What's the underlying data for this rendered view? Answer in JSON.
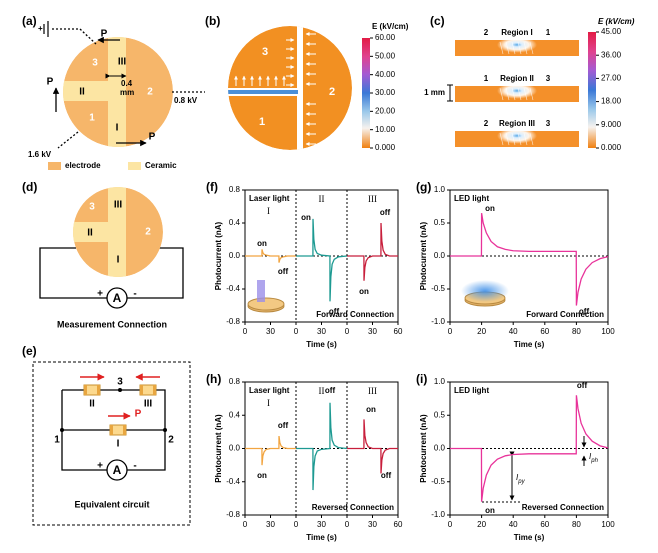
{
  "figure": {
    "a": {
      "label": "(a)",
      "p_labels": [
        "P",
        "P",
        "P"
      ],
      "regions": [
        "3",
        "III",
        "II",
        "1",
        "2",
        "I"
      ],
      "gap": [
        "0.4",
        "mm"
      ],
      "voltages": [
        "0.8 kV",
        "1.6 kV"
      ],
      "legend": [
        "electrode",
        "Ceramic"
      ]
    },
    "b": {
      "label": "(b)",
      "regions": [
        "3",
        "1",
        "2"
      ],
      "colorbar": {
        "title": "E (kV/cm)",
        "lim": [
          0,
          60
        ],
        "ticks": [
          {
            "value": 60,
            "label": "60.00"
          },
          {
            "value": 50,
            "label": "50.00"
          },
          {
            "value": 40,
            "label": "40.00"
          },
          {
            "value": 30,
            "label": "30.00"
          },
          {
            "value": 20,
            "label": "20.00"
          },
          {
            "value": 10,
            "label": "10.00"
          },
          {
            "value": 0,
            "label": "0.000"
          }
        ]
      }
    },
    "c": {
      "label": "(c)",
      "strips": [
        {
          "left": "2",
          "name": "Region I",
          "right": "1"
        },
        {
          "left": "1",
          "name": "Region II",
          "right": "3"
        },
        {
          "left": "2",
          "name": "Region III",
          "right": "3"
        }
      ],
      "scale": "1 mm",
      "colorbar": {
        "title": "E (kV/cm)",
        "lim": [
          0,
          45
        ],
        "ticks": [
          {
            "value": 45,
            "label": "45.00"
          },
          {
            "value": 36,
            "label": "36.00"
          },
          {
            "value": 27,
            "label": "27.00"
          },
          {
            "value": 18,
            "label": "18.00"
          },
          {
            "value": 9,
            "label": "9.000"
          },
          {
            "value": 0,
            "label": "0.000"
          }
        ]
      }
    },
    "d": {
      "label": "(d)",
      "regions": [
        "3",
        "III",
        "II",
        "2",
        "I"
      ],
      "meter": [
        "+",
        "A",
        "-"
      ],
      "caption": "Measurement Connection"
    },
    "e": {
      "label": "(e)",
      "nodes": [
        "1",
        "2",
        "3"
      ],
      "elements": [
        "II",
        "III",
        "I"
      ],
      "p": "P",
      "meter": [
        "+",
        "A",
        "-"
      ],
      "caption": "Equivalent circuit"
    },
    "i": {
      "pyro": {
        "symbol": "I",
        "sub": "py"
      },
      "photo": {
        "symbol": "I",
        "sub": "ph"
      }
    }
  },
  "chart_data": [
    {
      "type": "line",
      "label": "(f)",
      "title": "Laser light",
      "caption": "Forward Connection",
      "xlabel": "Time (s)",
      "ylabel": "Photocurrent (nA)",
      "ylim": [
        -0.8,
        0.8
      ],
      "yticks": [
        -0.8,
        -0.4,
        {
          "value": 0,
          "label": "0.0"
        },
        0.4,
        0.8
      ],
      "series": [
        {
          "name": "I",
          "color": "#f2a541",
          "xlim": [
            0,
            60
          ],
          "xticks": [
            0,
            30
          ],
          "x": [
            0,
            19.9,
            20,
            21,
            22.5,
            25,
            30,
            39.9,
            40,
            41,
            42.5,
            45,
            50,
            60
          ],
          "values": [
            0,
            0,
            0.08,
            0.04,
            0.02,
            0.01,
            0,
            0,
            -0.08,
            -0.04,
            -0.02,
            -0.01,
            0,
            0
          ]
        },
        {
          "name": "II",
          "color": "#1d9a92",
          "xlim": [
            0,
            60
          ],
          "xticks": [
            0,
            30
          ],
          "x": [
            0,
            19.9,
            20,
            21,
            22.5,
            25,
            30,
            39.9,
            40,
            41,
            42.5,
            45,
            50,
            60
          ],
          "values": [
            0,
            0,
            0.45,
            0.2,
            0.08,
            0.03,
            0.01,
            0,
            -0.55,
            -0.25,
            -0.1,
            -0.04,
            -0.01,
            0
          ]
        },
        {
          "name": "III",
          "color": "#c81f3c",
          "xlim": [
            0,
            60
          ],
          "xticks": [
            0,
            30,
            60
          ],
          "x": [
            0,
            19.9,
            20,
            21,
            22.5,
            25,
            30,
            39.9,
            40,
            41,
            42.5,
            45,
            50,
            60
          ],
          "values": [
            0,
            0,
            -0.3,
            -0.14,
            -0.06,
            -0.02,
            0,
            0,
            0.4,
            0.18,
            0.07,
            0.02,
            0,
            0
          ]
        }
      ],
      "annotations": [
        "on",
        "off",
        "on",
        "off",
        "on",
        "off"
      ]
    },
    {
      "type": "line",
      "label": "(g)",
      "title": "LED light",
      "caption": "Forward Connection",
      "xlabel": "Time (s)",
      "ylabel": "Photocurrent (nA)",
      "xlim": [
        0,
        100
      ],
      "xticks": [
        0,
        20,
        40,
        60,
        80,
        100
      ],
      "ylim": [
        -1,
        1
      ],
      "yticks": [
        {
          "value": -1,
          "label": "-1.0"
        },
        -0.5,
        {
          "value": 0,
          "label": "0.0"
        },
        0.5,
        {
          "value": 1,
          "label": "1.0"
        }
      ],
      "series": [
        {
          "color": "#e8339a",
          "x": [
            0,
            19.9,
            20,
            21,
            23,
            26,
            30,
            35,
            40,
            50,
            60,
            79.9,
            80,
            81,
            83,
            86,
            90,
            95,
            100
          ],
          "values": [
            0,
            0,
            0.65,
            0.5,
            0.35,
            0.22,
            0.14,
            0.1,
            0.08,
            0.07,
            0.07,
            0.07,
            -0.75,
            -0.55,
            -0.35,
            -0.2,
            -0.1,
            -0.04,
            -0.01
          ]
        }
      ],
      "annotations": [
        "on",
        "off"
      ]
    },
    {
      "type": "line",
      "label": "(h)",
      "title": "Laser light",
      "caption": "Reversed Connection",
      "xlabel": "Time (s)",
      "ylabel": "Photocurrent (nA)",
      "ylim": [
        -0.8,
        0.8
      ],
      "yticks": [
        -0.8,
        -0.4,
        {
          "value": 0,
          "label": "0.0"
        },
        0.4,
        0.8
      ],
      "series": [
        {
          "name": "I",
          "color": "#f2a541",
          "xlim": [
            0,
            60
          ],
          "xticks": [
            0,
            30
          ],
          "x": [
            0,
            19.9,
            20,
            21,
            22.5,
            25,
            30,
            39.9,
            40,
            41,
            42.5,
            45,
            50,
            60
          ],
          "values": [
            0,
            0,
            -0.2,
            -0.09,
            -0.04,
            -0.01,
            0,
            0,
            0.15,
            0.07,
            0.03,
            0.01,
            0,
            0
          ]
        },
        {
          "name": "II",
          "color": "#1d9a92",
          "xlim": [
            0,
            60
          ],
          "xticks": [
            0,
            30
          ],
          "x": [
            0,
            19.9,
            20,
            21,
            22.5,
            25,
            30,
            39.9,
            40,
            41,
            42.5,
            45,
            50,
            60
          ],
          "values": [
            0,
            0,
            -0.5,
            -0.22,
            -0.09,
            -0.03,
            -0.01,
            0,
            0.55,
            0.25,
            0.1,
            0.04,
            0.01,
            0
          ]
        },
        {
          "name": "III",
          "color": "#c81f3c",
          "xlim": [
            0,
            60
          ],
          "xticks": [
            0,
            30,
            60
          ],
          "x": [
            0,
            19.9,
            20,
            21,
            22.5,
            25,
            30,
            39.9,
            40,
            41,
            42.5,
            45,
            50,
            60
          ],
          "values": [
            0,
            0,
            0.35,
            0.16,
            0.07,
            0.02,
            0,
            0,
            -0.3,
            -0.14,
            -0.06,
            -0.02,
            0,
            0
          ]
        }
      ],
      "annotations": [
        "on",
        "off",
        "off",
        "on",
        "off"
      ]
    },
    {
      "type": "line",
      "label": "(i)",
      "title": "LED light",
      "caption": "Reversed Connection",
      "xlabel": "Time (s)",
      "ylabel": "Photocurrent (nA)",
      "xlim": [
        0,
        100
      ],
      "xticks": [
        0,
        20,
        40,
        60,
        80,
        100
      ],
      "ylim": [
        -1,
        1
      ],
      "yticks": [
        {
          "value": -1,
          "label": "-1.0"
        },
        -0.5,
        {
          "value": 0,
          "label": "0.0"
        },
        0.5,
        {
          "value": 1,
          "label": "1.0"
        }
      ],
      "series": [
        {
          "color": "#e8339a",
          "x": [
            0,
            19.9,
            20,
            21,
            23,
            26,
            30,
            35,
            40,
            50,
            60,
            79.9,
            80,
            81,
            83,
            86,
            90,
            95,
            100
          ],
          "values": [
            0,
            0,
            -0.8,
            -0.6,
            -0.4,
            -0.25,
            -0.16,
            -0.11,
            -0.09,
            -0.08,
            -0.08,
            -0.08,
            0.8,
            0.6,
            0.38,
            0.22,
            0.11,
            0.04,
            0.01
          ]
        }
      ],
      "annotations": [
        "on",
        "off"
      ]
    }
  ]
}
